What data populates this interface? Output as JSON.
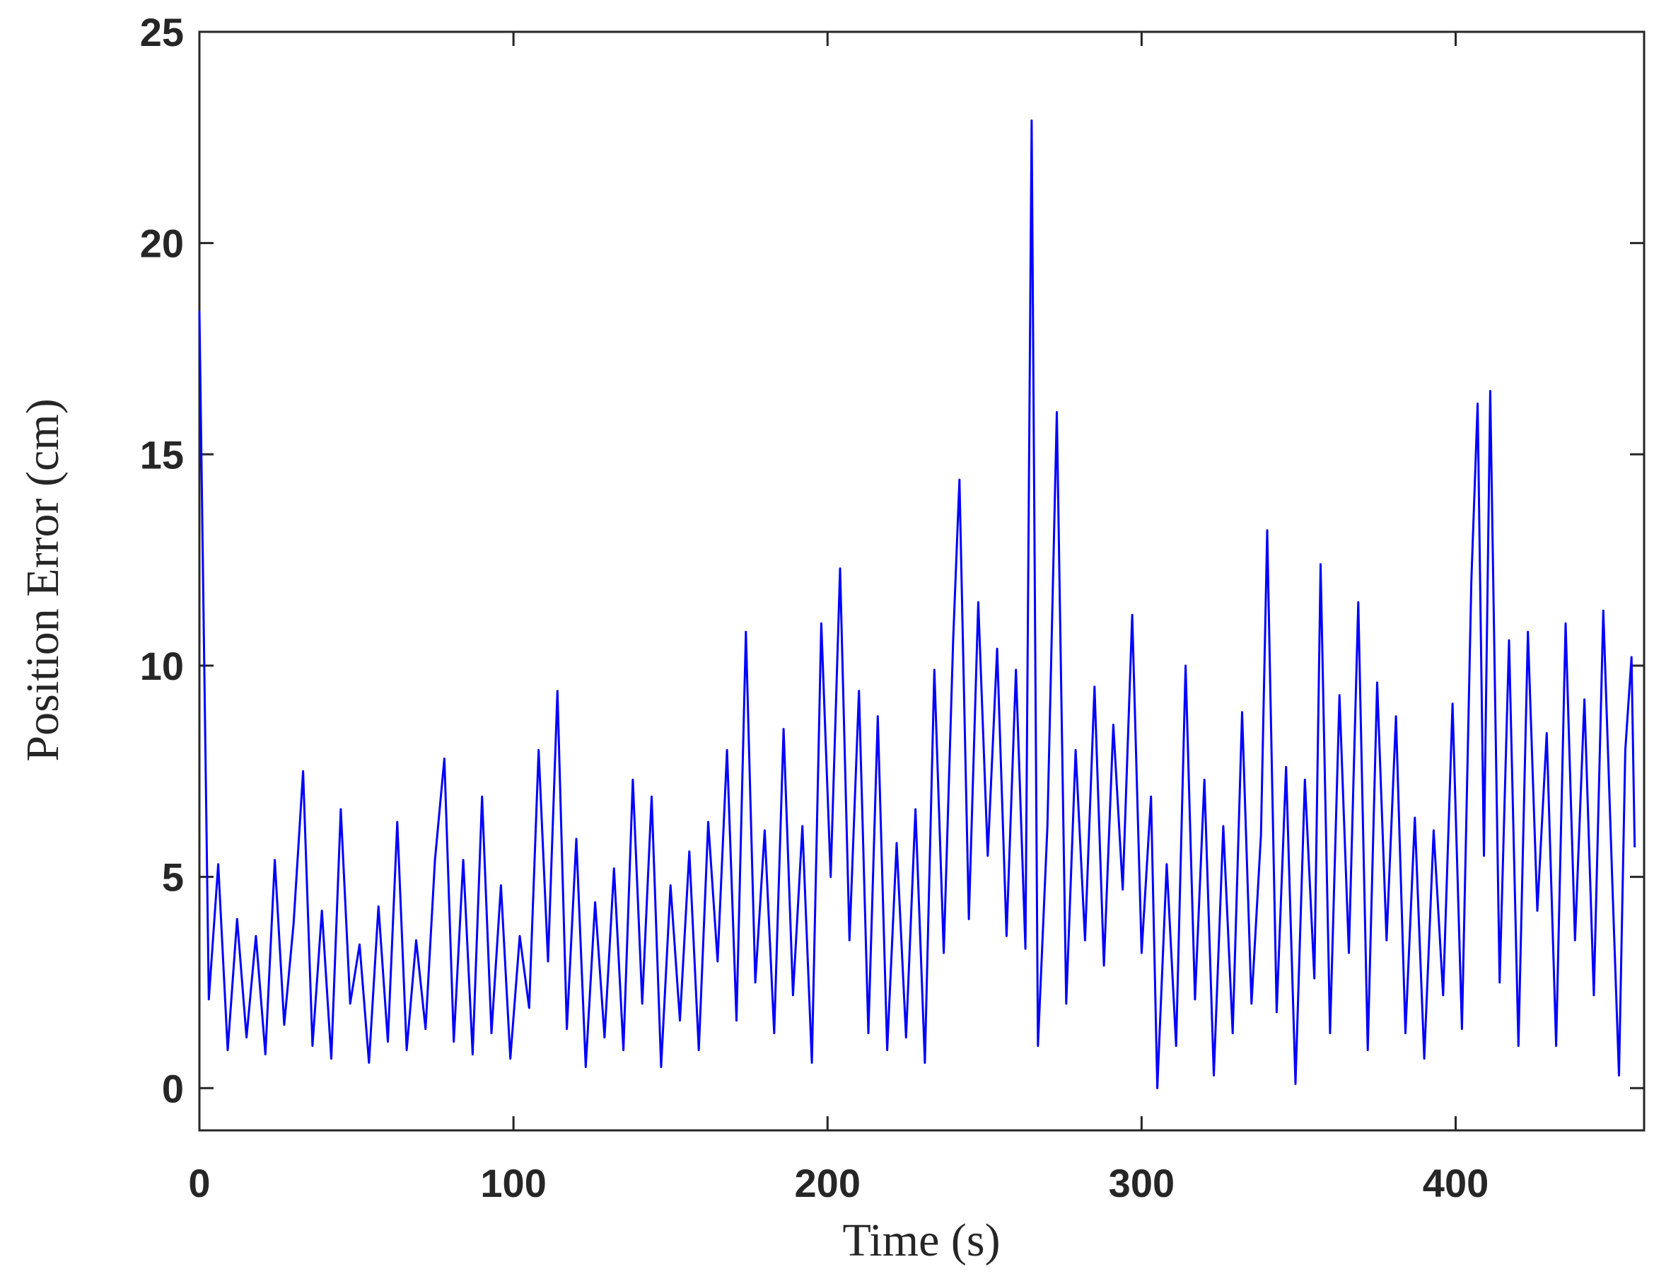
{
  "chart_data": {
    "type": "line",
    "x_label": "Time (s)",
    "y_label": "Position Error (cm)",
    "xlim": [
      0,
      460
    ],
    "ylim": [
      -1,
      25
    ],
    "xticks": [
      0,
      100,
      200,
      300,
      400
    ],
    "yticks": [
      0,
      5,
      10,
      15,
      20,
      25
    ],
    "series": [
      {
        "color": "#0000ff",
        "x": [
          0,
          3,
          6,
          9,
          12,
          15,
          18,
          21,
          24,
          27,
          30,
          33,
          36,
          39,
          42,
          45,
          48,
          51,
          54,
          57,
          60,
          63,
          66,
          69,
          72,
          75,
          78,
          81,
          84,
          87,
          90,
          93,
          96,
          99,
          102,
          105,
          108,
          111,
          114,
          117,
          120,
          123,
          126,
          129,
          132,
          135,
          138,
          141,
          144,
          147,
          150,
          153,
          156,
          159,
          162,
          165,
          168,
          171,
          174,
          177,
          180,
          183,
          186,
          189,
          192,
          195,
          198,
          201,
          204,
          207,
          210,
          213,
          216,
          219,
          222,
          225,
          228,
          231,
          234,
          237,
          240,
          242,
          245,
          248,
          251,
          254,
          257,
          260,
          263,
          265,
          267,
          270,
          273,
          276,
          279,
          282,
          285,
          288,
          291,
          294,
          297,
          300,
          303,
          305,
          308,
          311,
          314,
          317,
          320,
          323,
          326,
          329,
          332,
          335,
          338,
          340,
          343,
          346,
          349,
          352,
          355,
          357,
          360,
          363,
          366,
          369,
          372,
          375,
          378,
          381,
          384,
          387,
          390,
          393,
          396,
          399,
          402,
          405,
          407,
          409,
          411,
          414,
          417,
          420,
          423,
          426,
          429,
          432,
          435,
          438,
          441,
          444,
          447,
          450,
          452,
          454,
          456,
          457
        ],
        "values": [
          18.4,
          2.1,
          5.3,
          0.9,
          4.0,
          1.2,
          3.6,
          0.8,
          5.4,
          1.5,
          3.9,
          7.5,
          1.0,
          4.2,
          0.7,
          6.6,
          2.0,
          3.4,
          0.6,
          4.3,
          1.1,
          6.3,
          0.9,
          3.5,
          1.4,
          5.4,
          7.8,
          1.1,
          5.4,
          0.8,
          6.9,
          1.3,
          4.8,
          0.7,
          3.6,
          1.9,
          8.0,
          3.0,
          9.4,
          1.4,
          5.9,
          0.5,
          4.4,
          1.2,
          5.2,
          0.9,
          7.3,
          2.0,
          6.9,
          0.5,
          4.8,
          1.6,
          5.6,
          0.9,
          6.3,
          3.0,
          8.0,
          1.6,
          10.8,
          2.5,
          6.1,
          1.3,
          8.5,
          2.2,
          6.2,
          0.6,
          11.0,
          5.0,
          12.3,
          3.5,
          9.4,
          1.3,
          8.8,
          0.9,
          5.8,
          1.2,
          6.6,
          0.6,
          9.9,
          3.2,
          10.6,
          14.4,
          4.0,
          11.5,
          5.5,
          10.4,
          3.6,
          9.9,
          3.3,
          22.9,
          1.0,
          6.2,
          16.0,
          2.0,
          8.0,
          3.5,
          9.5,
          2.9,
          8.6,
          4.7,
          11.2,
          3.2,
          6.9,
          0.0,
          5.3,
          1.0,
          10.0,
          2.1,
          7.3,
          0.3,
          6.2,
          1.3,
          8.9,
          2.0,
          6.0,
          13.2,
          1.8,
          7.6,
          0.1,
          7.3,
          2.6,
          12.4,
          1.3,
          9.3,
          3.2,
          11.5,
          0.9,
          9.6,
          3.5,
          8.8,
          1.3,
          6.4,
          0.7,
          6.1,
          2.2,
          9.1,
          1.4,
          12.0,
          16.2,
          5.5,
          16.5,
          2.5,
          10.6,
          1.0,
          10.8,
          4.2,
          8.4,
          1.0,
          11.0,
          3.5,
          9.2,
          2.2,
          11.3,
          4.6,
          0.3,
          8.0,
          10.2,
          5.7
        ]
      }
    ]
  }
}
